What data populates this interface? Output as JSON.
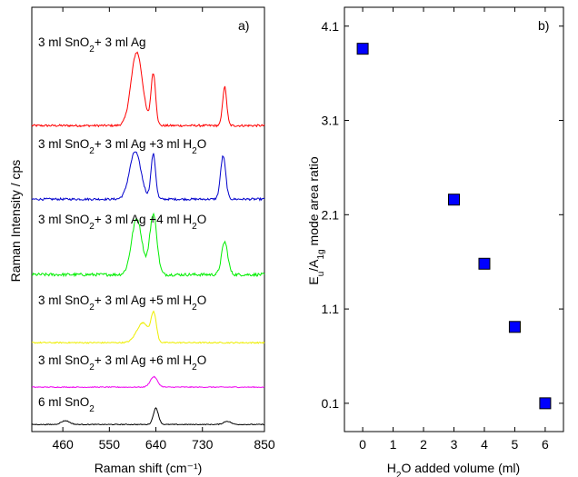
{
  "chart_data": [
    {
      "type": "line",
      "panel_label": "a)",
      "xlabel": "Raman shift (cm⁻¹)",
      "ylabel": "Raman Intensity / cps",
      "xlim": [
        400,
        850
      ],
      "xticks": [
        "460",
        "550",
        "640",
        "730",
        "850"
      ],
      "grid": false,
      "series": [
        {
          "name": "3 ml SnO2+ 3 ml Ag",
          "name_parts": [
            "3 ml SnO",
            "2",
            "+ 3 ml Ag",
            ""
          ],
          "color": "#ff0000",
          "baseline": 0.5,
          "noise": 0.25,
          "peaks": [
            {
              "x": 603,
              "amp": 8.5,
              "w": 11
            },
            {
              "x": 635,
              "amp": 6.0,
              "w": 4.5
            },
            {
              "x": 773,
              "amp": 4.5,
              "w": 4
            }
          ]
        },
        {
          "name": "3 ml SnO2+ 3 ml Ag +3 ml H2O",
          "name_parts": [
            "3 ml SnO",
            "2",
            "+ 3 ml Ag +3 ml H",
            "2",
            "O"
          ],
          "color": "#0000cc",
          "baseline": 0.4,
          "noise": 0.25,
          "peaks": [
            {
              "x": 600,
              "amp": 5.5,
              "w": 11
            },
            {
              "x": 635,
              "amp": 5.2,
              "w": 4.5
            },
            {
              "x": 770,
              "amp": 5.0,
              "w": 5
            }
          ]
        },
        {
          "name": "3 ml SnO2+ 3 ml Ag +4 ml H2O",
          "name_parts": [
            "3 ml SnO",
            "2",
            "+ 3 ml Ag +4 ml H",
            "2",
            "O"
          ],
          "color": "#00ee00",
          "baseline": 0.5,
          "noise": 0.35,
          "peaks": [
            {
              "x": 603,
              "amp": 6.5,
              "w": 10
            },
            {
              "x": 635,
              "amp": 7.0,
              "w": 7
            },
            {
              "x": 773,
              "amp": 3.8,
              "w": 6
            }
          ]
        },
        {
          "name": "3 ml SnO2+ 3 ml Ag +5 ml H2O",
          "name_parts": [
            "3 ml SnO",
            "2",
            "+ 3 ml Ag +5 ml H",
            "2",
            "O"
          ],
          "color": "#eeee00",
          "baseline": 0.3,
          "noise": 0.15,
          "peaks": [
            {
              "x": 615,
              "amp": 2.3,
              "w": 12
            },
            {
              "x": 636,
              "amp": 3.1,
              "w": 5
            }
          ]
        },
        {
          "name": "3 ml SnO2+ 3 ml Ag +6 ml H2O",
          "name_parts": [
            "3 ml SnO",
            "2",
            "+ 3 ml Ag +6 ml H",
            "2",
            "O"
          ],
          "color": "#ee00ee",
          "baseline": 0.2,
          "noise": 0.1,
          "peaks": [
            {
              "x": 636,
              "amp": 1.2,
              "w": 7
            }
          ]
        },
        {
          "name": "6 ml SnO2",
          "name_parts": [
            "6 ml SnO",
            "2",
            "",
            "",
            ""
          ],
          "color": "#000000",
          "baseline": 0.3,
          "noise": 0.15,
          "peaks": [
            {
              "x": 465,
              "amp": 0.7,
              "w": 8
            },
            {
              "x": 640,
              "amp": 3.0,
              "w": 5
            },
            {
              "x": 778,
              "amp": 0.6,
              "w": 7
            }
          ]
        }
      ]
    },
    {
      "type": "scatter",
      "panel_label": "b)",
      "xlabel_parts": [
        "H",
        "2",
        "O added volume (ml)"
      ],
      "ylabel_parts": [
        "E",
        "u",
        "/A",
        "1g",
        " mode area ratio"
      ],
      "xlim": [
        -0.6,
        6.6
      ],
      "ylim": [
        -0.2,
        4.3
      ],
      "xticks": [
        0,
        1,
        2,
        3,
        4,
        5,
        6
      ],
      "yticks": [
        "0.1",
        "1.1",
        "2.1",
        "3.1",
        "4.1"
      ],
      "marker": "square",
      "marker_color": "#0000ff",
      "grid": false,
      "points": [
        {
          "x": 0,
          "y": 3.86
        },
        {
          "x": 3,
          "y": 2.26
        },
        {
          "x": 4,
          "y": 1.58
        },
        {
          "x": 5,
          "y": 0.91
        },
        {
          "x": 6,
          "y": 0.1
        }
      ]
    }
  ]
}
